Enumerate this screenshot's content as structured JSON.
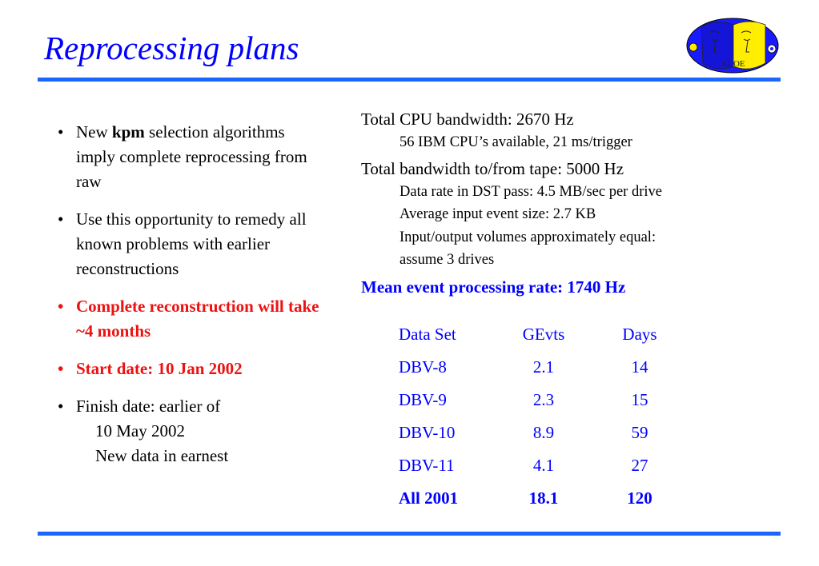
{
  "title": "Reprocessing plans",
  "colors": {
    "title": "#0000ff",
    "rule": "#1a66ff",
    "highlight": "#ee1111",
    "table": "#0000ff"
  },
  "logo": {
    "text": "KLOE",
    "icon": "kloe-logo-icon"
  },
  "bullets": [
    {
      "pre": "New ",
      "bold": "kpm",
      "post": " selection algorithms imply complete reprocessing from raw"
    },
    {
      "text": "Use this opportunity to remedy all known problems with earlier reconstructions"
    },
    {
      "text": "Complete reconstruction will take ~4 months"
    },
    {
      "text": "Start date: 10 Jan 2002"
    },
    {
      "text": "Finish date: earlier of",
      "lines": [
        "10 May 2002",
        "New data in earnest"
      ]
    }
  ],
  "specs": {
    "cpu_head": "Total CPU bandwidth: 2670 Hz",
    "cpu_detail": "56 IBM CPU’s available, 21 ms/trigger",
    "tape_head": "Total bandwidth to/from tape: 5000 Hz",
    "tape_details": [
      "Data rate in DST pass: 4.5 MB/sec per drive",
      "Average input event size: 2.7 KB",
      "Input/output volumes approximately equal:",
      "assume 3 drives"
    ],
    "rate_head": "Mean event processing rate: 1740 Hz"
  },
  "table": {
    "headers": [
      "Data Set",
      "GEvts",
      "Days"
    ],
    "rows": [
      [
        "DBV-8",
        "2.1",
        "14"
      ],
      [
        "DBV-9",
        "2.3",
        "15"
      ],
      [
        "DBV-10",
        "8.9",
        "59"
      ],
      [
        "DBV-11",
        "4.1",
        "27"
      ]
    ],
    "total": [
      "All 2001",
      "18.1",
      "120"
    ]
  }
}
